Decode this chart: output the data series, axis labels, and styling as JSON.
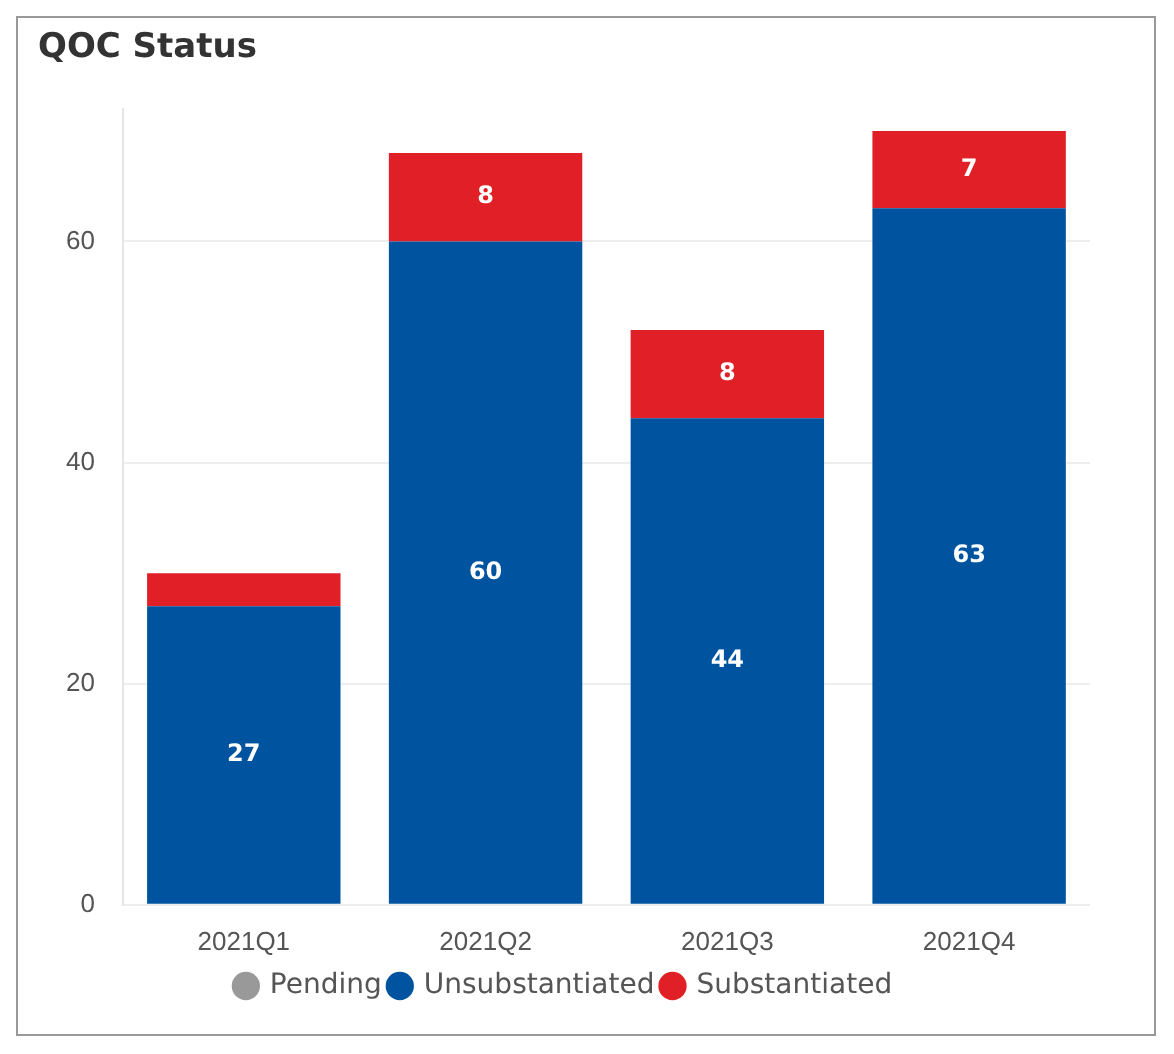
{
  "chart_data": {
    "type": "bar",
    "title": "QOC Status",
    "categories": [
      "2021Q1",
      "2021Q2",
      "2021Q3",
      "2021Q4"
    ],
    "stacked": true,
    "ylim": [
      0,
      72
    ],
    "yticks": [
      0,
      20,
      40,
      60
    ],
    "grid": "y",
    "legend": "bottom",
    "series": [
      {
        "name": "Pending",
        "color": "#999999",
        "values": [
          null,
          null,
          null,
          null
        ]
      },
      {
        "name": "Unsubstantiated",
        "color": "#00549f",
        "values": [
          27,
          60,
          44,
          63
        ],
        "value_labels": [
          "27",
          "60",
          "44",
          "63"
        ]
      },
      {
        "name": "Substantiated",
        "color": "#e01f26",
        "values": [
          3,
          8,
          8,
          7
        ],
        "value_labels": [
          null,
          "8",
          "8",
          "7"
        ]
      }
    ]
  }
}
